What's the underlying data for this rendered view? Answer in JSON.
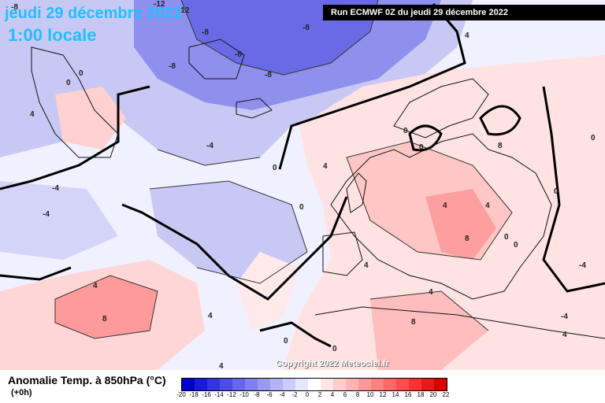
{
  "header": {
    "date": "jeudi 29 décembre 2022",
    "time": "1:00 locale",
    "run": "Run ECMWF 0Z du jeudi 29 décembre 2022"
  },
  "copyright": "Copyright 2022 Meteociel.fr",
  "legend": {
    "title": "Anomalie Temp. à 850hPa (°C)",
    "offset": "(+0h)",
    "ticks": [
      "-20",
      "-18",
      "-16",
      "-14",
      "-12",
      "-10",
      "-8",
      "-6",
      "-4",
      "-2",
      "0",
      "2",
      "4",
      "6",
      "8",
      "10",
      "12",
      "14",
      "16",
      "18",
      "20",
      "22"
    ],
    "colors": [
      "#0000cc",
      "#1a1ad9",
      "#3333e0",
      "#4d4de6",
      "#6666ea",
      "#7f7fee",
      "#9999f2",
      "#b3b3f6",
      "#ccccfa",
      "#e6e6fd",
      "#ffffff",
      "#ffe6e6",
      "#ffcccc",
      "#ffb3b3",
      "#ff9999",
      "#ff8080",
      "#ff6666",
      "#ff4d4d",
      "#f53333",
      "#e61a1a",
      "#d90000"
    ]
  },
  "contour_labels": [
    "-8",
    "-12",
    "-12",
    "-8",
    "-8",
    "-8",
    "-8",
    "-8",
    "-4",
    "4",
    "0",
    "0",
    "0",
    "-4",
    "-4",
    "4",
    "4",
    "8",
    "4",
    "0",
    "0",
    "0",
    "4",
    "8",
    "8",
    "0",
    "0",
    "4",
    "4",
    "-4",
    "-4",
    "0",
    "0",
    "8",
    "4",
    "4",
    "0",
    "0",
    "4",
    "4"
  ]
}
